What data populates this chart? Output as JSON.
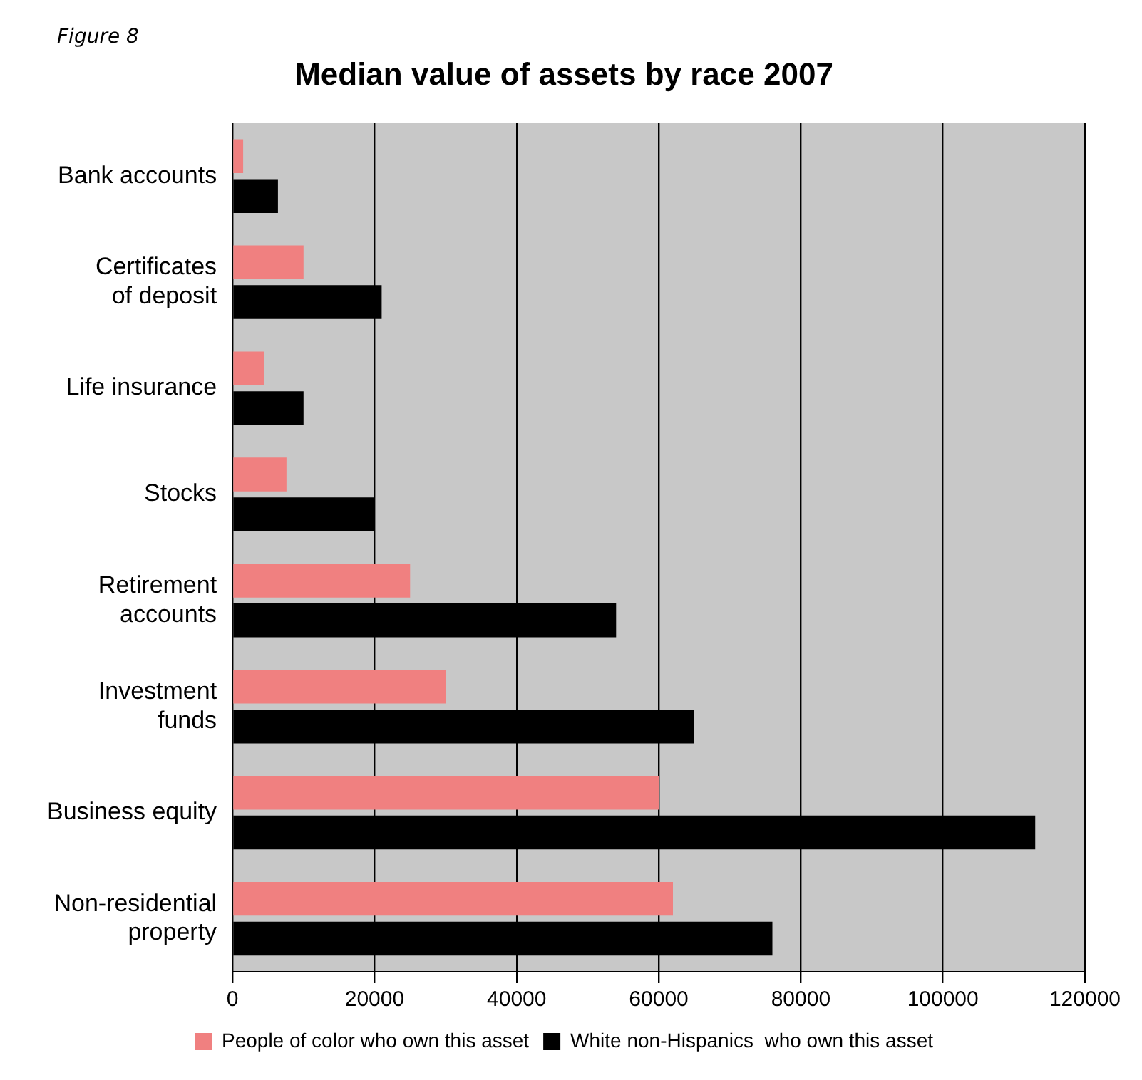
{
  "chart_data": {
    "type": "bar",
    "orientation": "horizontal",
    "title": "Median value of assets by race 2007",
    "annotations": [
      "Figure 8"
    ],
    "categories": [
      "Bank accounts",
      "Certificates of deposit",
      "Life insurance",
      "Stocks",
      "Retirement accounts",
      "Investment funds",
      "Business equity",
      "Non-residential property"
    ],
    "series": [
      {
        "name": "People of color who own this asset",
        "color": "#f08080",
        "values": [
          1500,
          10000,
          4400,
          7600,
          25000,
          30000,
          60000,
          62000
        ]
      },
      {
        "name": "White non-Hispanics  who own this asset",
        "color": "#000000",
        "values": [
          6400,
          21000,
          10000,
          20000,
          54000,
          65000,
          113000,
          76000
        ]
      }
    ],
    "xlim": [
      0,
      120000
    ],
    "xticks": [
      0,
      20000,
      40000,
      60000,
      80000,
      100000,
      120000
    ],
    "grid": "x",
    "legend": "bottom"
  }
}
